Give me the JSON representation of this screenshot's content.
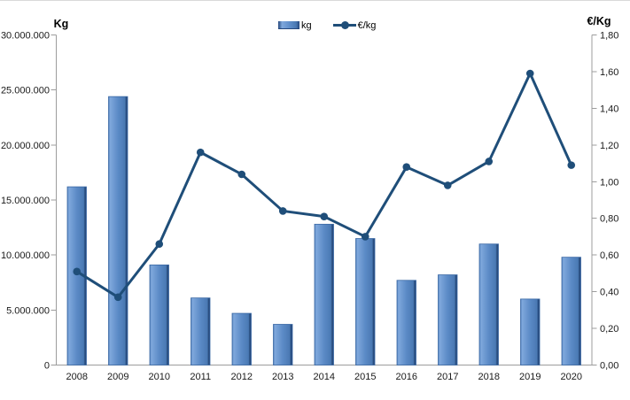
{
  "axes": {
    "left_unit": "Kg",
    "right_unit": "€/Kg"
  },
  "legend": {
    "items": [
      {
        "label": "kg",
        "marker": "bar-swatch"
      },
      {
        "label": "€/kg",
        "marker": "line-marker-swatch"
      }
    ]
  },
  "colors": {
    "bar_main": "#5b8ac6",
    "bar_light": "#7fa8dc",
    "bar_dark": "#24477d",
    "bar_stroke": "#3b69a5",
    "line": "#1f4e79",
    "axis_line": "#9c9c9c",
    "text": "#1a1a1a"
  },
  "chart_data": {
    "type": "bar+line",
    "title": "",
    "categories": [
      "2008",
      "2009",
      "2010",
      "2011",
      "2012",
      "2013",
      "2014",
      "2015",
      "2016",
      "2017",
      "2018",
      "2019",
      "2020"
    ],
    "series": [
      {
        "name": "kg",
        "type": "bar",
        "axis": "left",
        "values": [
          16200000,
          24400000,
          9100000,
          6100000,
          4700000,
          3700000,
          12800000,
          11500000,
          7700000,
          8200000,
          11000000,
          6000000,
          9800000
        ]
      },
      {
        "name": "€/kg",
        "type": "line",
        "axis": "right",
        "values": [
          0.51,
          0.37,
          0.66,
          1.16,
          1.04,
          0.84,
          0.81,
          0.7,
          1.08,
          0.98,
          1.11,
          1.59,
          1.09
        ]
      }
    ],
    "left_axis": {
      "label": "Kg",
      "min": 0,
      "max": 30000000,
      "step": 5000000,
      "ticks": [
        {
          "value": 0,
          "label": "0"
        },
        {
          "value": 5000000,
          "label": "5.000.000"
        },
        {
          "value": 10000000,
          "label": "10.000.000"
        },
        {
          "value": 15000000,
          "label": "15.000.000"
        },
        {
          "value": 20000000,
          "label": "20.000.000"
        },
        {
          "value": 25000000,
          "label": "25.000.000"
        },
        {
          "value": 30000000,
          "label": "30.000.000"
        }
      ]
    },
    "right_axis": {
      "label": "€/Kg",
      "min": 0,
      "max": 1.8,
      "step": 0.2,
      "ticks": [
        {
          "value": 0.0,
          "label": "0,00"
        },
        {
          "value": 0.2,
          "label": "0,20"
        },
        {
          "value": 0.4,
          "label": "0,40"
        },
        {
          "value": 0.6,
          "label": "0,60"
        },
        {
          "value": 0.8,
          "label": "0,80"
        },
        {
          "value": 1.0,
          "label": "1,00"
        },
        {
          "value": 1.2,
          "label": "1,20"
        },
        {
          "value": 1.4,
          "label": "1,40"
        },
        {
          "value": 1.6,
          "label": "1,60"
        },
        {
          "value": 1.8,
          "label": "1,80"
        }
      ]
    },
    "grid": false,
    "legend_position": "top-center"
  }
}
